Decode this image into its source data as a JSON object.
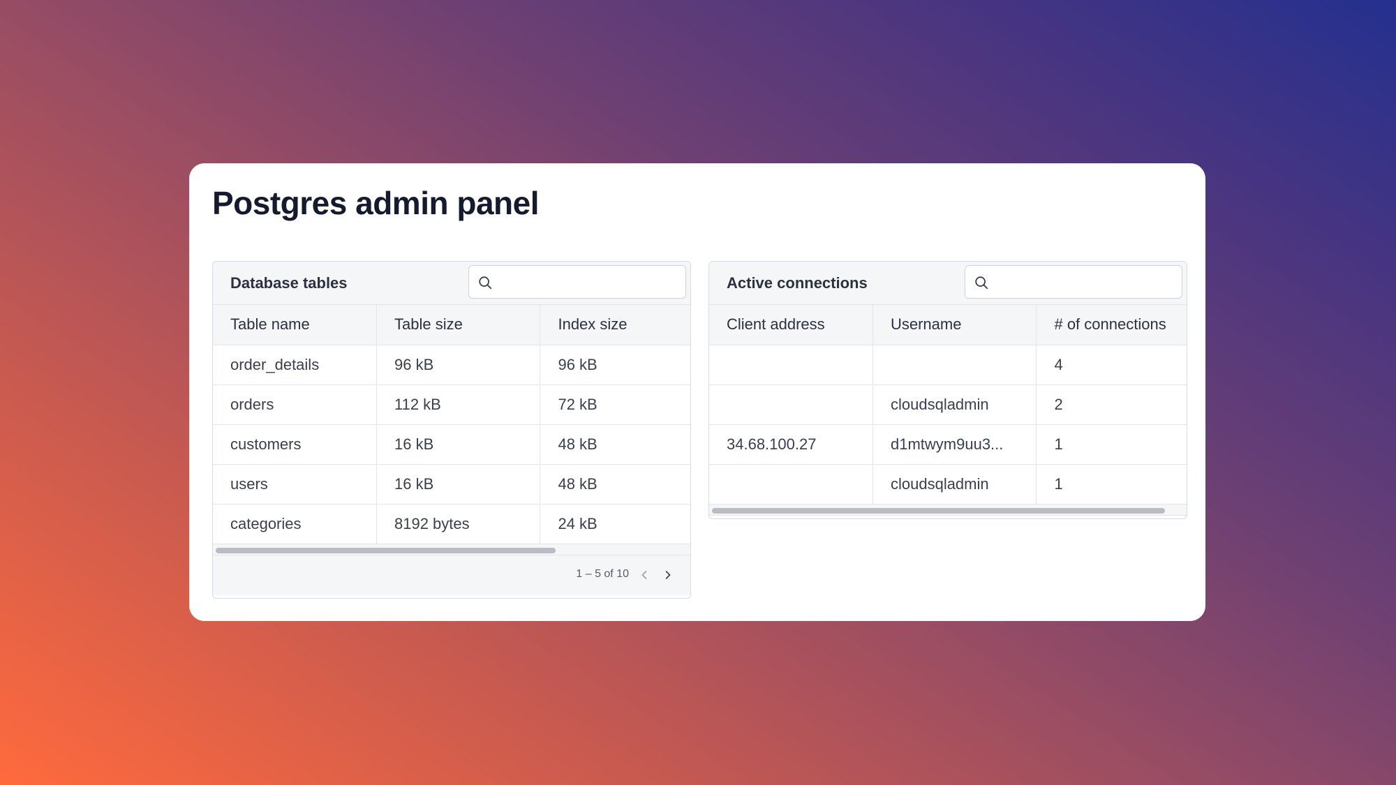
{
  "page": {
    "title": "Postgres admin panel"
  },
  "tables_panel": {
    "title": "Database tables",
    "search_placeholder": "",
    "search_icon": "search-icon",
    "columns": [
      "Table name",
      "Table size",
      "Index size"
    ],
    "rows": [
      [
        "order_details",
        "96 kB",
        "96 kB"
      ],
      [
        "orders",
        "112 kB",
        "72 kB"
      ],
      [
        "customers",
        "16 kB",
        "48 kB"
      ],
      [
        "users",
        "16 kB",
        "48 kB"
      ],
      [
        "categories",
        "8192 bytes",
        "24 kB"
      ]
    ],
    "scroll_fraction": 0.72,
    "pagination": {
      "label": "1 – 5 of 10",
      "prev_icon": "chevron-left-icon",
      "next_icon": "chevron-right-icon"
    }
  },
  "connections_panel": {
    "title": "Active connections",
    "search_placeholder": "",
    "search_icon": "search-icon",
    "columns": [
      "Client address",
      "Username",
      "# of connections"
    ],
    "rows": [
      [
        "",
        "",
        "4"
      ],
      [
        "",
        "cloudsqladmin",
        "2"
      ],
      [
        "34.68.100.27",
        "d1mtwym9uu3...",
        "1"
      ],
      [
        "",
        "cloudsqladmin",
        "1"
      ]
    ],
    "scroll_fraction": 0.96
  },
  "colors": {
    "card_background": "#ffffff",
    "toolbar_background": "#f5f6f8",
    "border": "#d8dbe0",
    "title_text": "#151a2d",
    "body_text": "#3a3f4d",
    "scrollbar_thumb": "#b9bcc2"
  }
}
